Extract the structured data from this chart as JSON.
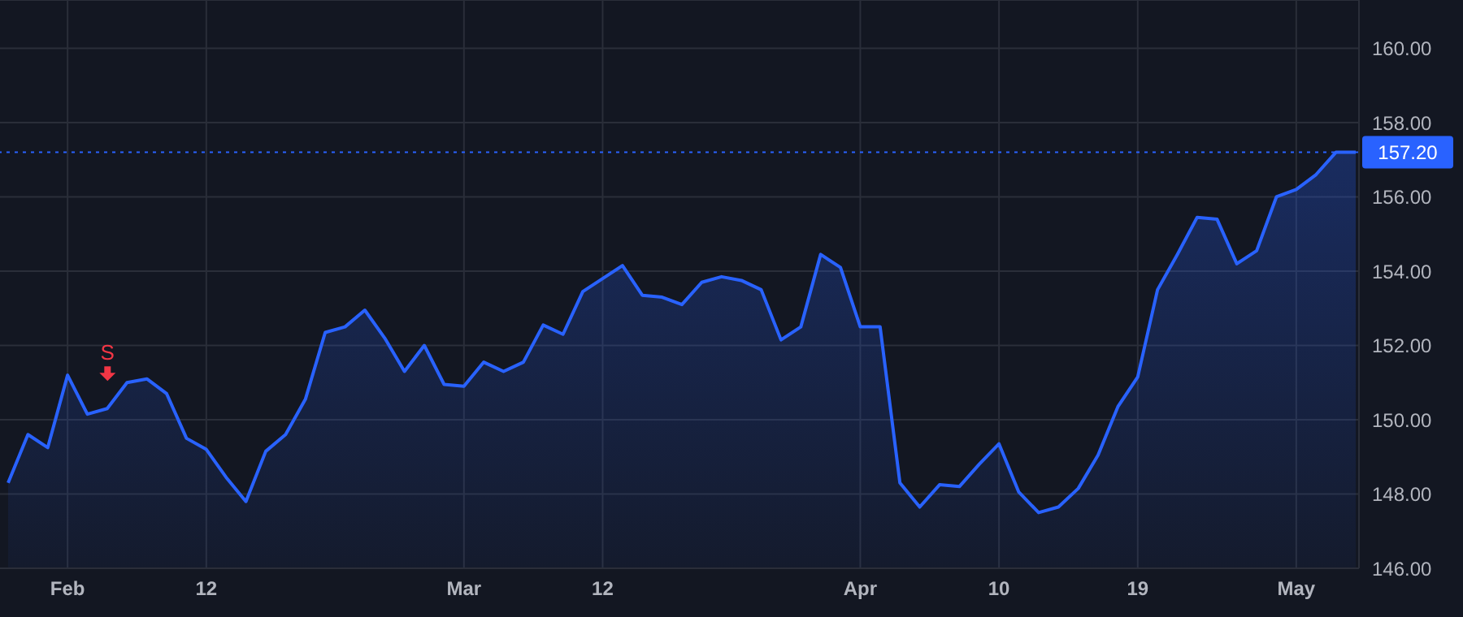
{
  "chart_data": {
    "type": "area",
    "categories": [
      null,
      null,
      null,
      "Feb",
      null,
      null,
      null,
      null,
      null,
      null,
      "12",
      null,
      null,
      null,
      null,
      null,
      null,
      null,
      null,
      null,
      null,
      null,
      null,
      "Mar",
      null,
      null,
      null,
      null,
      null,
      null,
      "12",
      null,
      null,
      null,
      null,
      null,
      null,
      null,
      null,
      null,
      null,
      null,
      null,
      "Apr",
      null,
      null,
      null,
      null,
      null,
      null,
      "10",
      null,
      null,
      null,
      null,
      null,
      null,
      "19",
      null,
      null,
      null,
      null,
      null,
      null,
      null,
      "May",
      null,
      null,
      null
    ],
    "series": [
      {
        "color": "#2962ff",
        "values": [
          148.3,
          149.6,
          149.25,
          151.2,
          150.15,
          150.3,
          151.0,
          151.1,
          150.7,
          149.5,
          149.2,
          148.45,
          147.8,
          149.15,
          149.6,
          150.55,
          152.35,
          152.5,
          152.95,
          152.2,
          151.3,
          152.0,
          150.95,
          150.9,
          151.55,
          151.3,
          151.55,
          152.55,
          152.3,
          153.45,
          153.8,
          154.15,
          153.35,
          153.3,
          153.1,
          153.7,
          153.85,
          153.75,
          153.5,
          152.15,
          152.5,
          154.45,
          154.1,
          152.5,
          152.5,
          148.3,
          147.65,
          148.25,
          148.2,
          148.8,
          149.35,
          148.05,
          147.5,
          147.65,
          148.15,
          149.05,
          150.35,
          151.15,
          153.5,
          154.45,
          155.45,
          155.4,
          154.2,
          154.55,
          156.0,
          156.2,
          156.6,
          157.2,
          157.2
        ]
      }
    ],
    "ylim": [
      146,
      161.3
    ],
    "yticks": [
      {
        "value": 146,
        "label": "146.00"
      },
      {
        "value": 148,
        "label": "148.00"
      },
      {
        "value": 150,
        "label": "150.00"
      },
      {
        "value": 152,
        "label": "152.00"
      },
      {
        "value": 154,
        "label": "154.00"
      },
      {
        "value": 156,
        "label": "156.00"
      },
      {
        "value": 158,
        "label": "158.00"
      },
      {
        "value": 160,
        "label": "160.00"
      }
    ],
    "ref_lines": [
      {
        "axis": "y",
        "value": 157.2,
        "label": "157.20",
        "color": "#2962ff",
        "line_style": "dotted"
      }
    ],
    "annotations": [
      "S"
    ],
    "grid": true
  }
}
